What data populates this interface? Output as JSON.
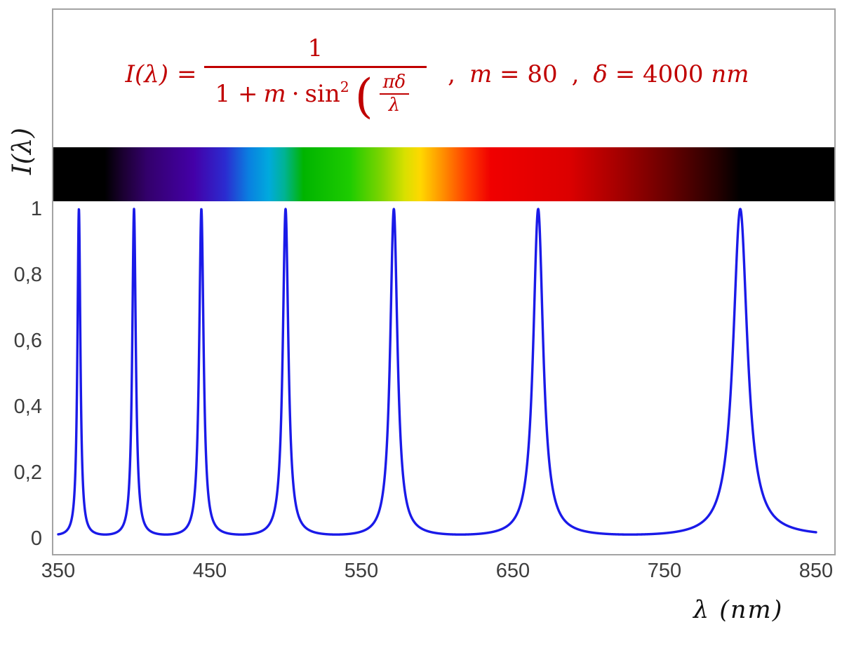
{
  "formula": {
    "color": "#c00000",
    "lhs": "I(λ)",
    "eq": "=",
    "numerator": "1",
    "den_one_plus": "1 +",
    "den_m": "m",
    "den_dot": "·",
    "den_sin": "sin",
    "den_exp": "2",
    "paren_open": "(",
    "inner_num": "πδ",
    "inner_den": "λ",
    "sep1": ",",
    "m_name": "m",
    "m_value": "= 80",
    "sep2": ",",
    "delta_name": "δ",
    "delta_value": "= 4000",
    "delta_unit": "nm"
  },
  "chart_data": {
    "type": "line",
    "function": "I(λ) = 1 / (1 + m·sin²(πδ/λ))",
    "params": {
      "m": 80,
      "delta_nm": 4000
    },
    "xlabel": "λ  (nm)",
    "ylabel": "I(λ)",
    "xlim": [
      350,
      850
    ],
    "ylim": [
      0,
      1
    ],
    "grid": false,
    "legend": "none",
    "frame_color": "#a3a3a3",
    "curve_color": "#1a1ae8",
    "peaks_nm": [
      363.6,
      400,
      444.4,
      500,
      571.4,
      666.7,
      800
    ],
    "peak_value": 1,
    "min_value": 0.012,
    "x_ticks": [
      {
        "v": 350,
        "label": "350"
      },
      {
        "v": 450,
        "label": "450"
      },
      {
        "v": 550,
        "label": "550"
      },
      {
        "v": 650,
        "label": "650"
      },
      {
        "v": 750,
        "label": "750"
      },
      {
        "v": 850,
        "label": "850"
      }
    ],
    "y_ticks": [
      {
        "v": 0,
        "label": "0"
      },
      {
        "v": 0.2,
        "label": "0,2"
      },
      {
        "v": 0.4,
        "label": "0,4"
      },
      {
        "v": 0.6,
        "label": "0,6"
      },
      {
        "v": 0.8,
        "label": "0,8"
      },
      {
        "v": 1,
        "label": "1"
      }
    ],
    "spectrum_bar": {
      "stops": [
        {
          "nm": 350,
          "color": "#000000"
        },
        {
          "nm": 383,
          "color": "#000000"
        },
        {
          "nm": 395,
          "color": "#1c0033"
        },
        {
          "nm": 410,
          "color": "#33006b"
        },
        {
          "nm": 440,
          "color": "#4400a8"
        },
        {
          "nm": 460,
          "color": "#2b2bd0"
        },
        {
          "nm": 475,
          "color": "#0a7fe0"
        },
        {
          "nm": 488,
          "color": "#00aadd"
        },
        {
          "nm": 498,
          "color": "#00b394"
        },
        {
          "nm": 510,
          "color": "#00b400"
        },
        {
          "nm": 540,
          "color": "#1ecc00"
        },
        {
          "nm": 560,
          "color": "#7ed400"
        },
        {
          "nm": 575,
          "color": "#d8e000"
        },
        {
          "nm": 585,
          "color": "#ffd800"
        },
        {
          "nm": 600,
          "color": "#ff8c00"
        },
        {
          "nm": 615,
          "color": "#ff3c00"
        },
        {
          "nm": 630,
          "color": "#f00000"
        },
        {
          "nm": 680,
          "color": "#dc0000"
        },
        {
          "nm": 710,
          "color": "#a80000"
        },
        {
          "nm": 745,
          "color": "#660000"
        },
        {
          "nm": 775,
          "color": "#260000"
        },
        {
          "nm": 790,
          "color": "#000000"
        },
        {
          "nm": 850,
          "color": "#000000"
        }
      ]
    }
  }
}
